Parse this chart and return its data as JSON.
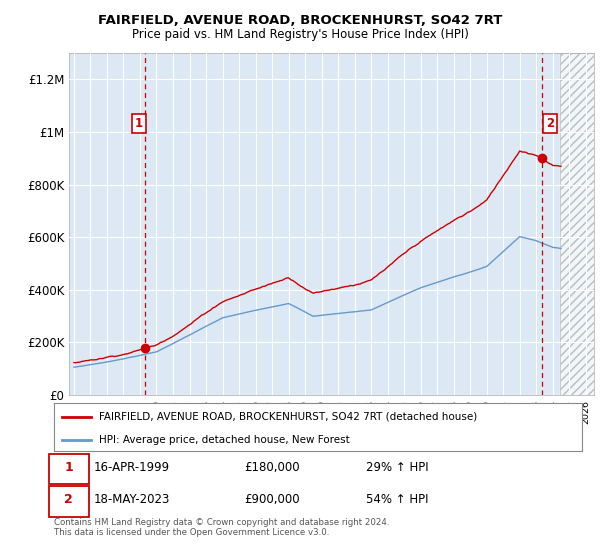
{
  "title": "FAIRFIELD, AVENUE ROAD, BROCKENHURST, SO42 7RT",
  "subtitle": "Price paid vs. HM Land Registry's House Price Index (HPI)",
  "sale1_label": "1",
  "sale1_date": 1999.29,
  "sale1_price": 180000,
  "sale1_text": "16-APR-1999",
  "sale1_amt": "£180,000",
  "sale1_hpi_pct": "29% ↑ HPI",
  "sale2_label": "2",
  "sale2_date": 2023.38,
  "sale2_price": 900000,
  "sale2_text": "18-MAY-2023",
  "sale2_amt": "£900,000",
  "sale2_hpi_pct": "54% ↑ HPI",
  "red_line_label": "FAIRFIELD, AVENUE ROAD, BROCKENHURST, SO42 7RT (detached house)",
  "blue_line_label": "HPI: Average price, detached house, New Forest",
  "footnote": "Contains HM Land Registry data © Crown copyright and database right 2024.\nThis data is licensed under the Open Government Licence v3.0.",
  "ylim": [
    0,
    1300000
  ],
  "xlim_start": 1994.7,
  "xlim_end": 2026.5,
  "future_start": 2024.42,
  "bg_color": "#dce9f5",
  "red_color": "#cc0000",
  "blue_color": "#6699cc",
  "grid_color": "#ffffff",
  "yticks": [
    0,
    200000,
    400000,
    600000,
    800000,
    1000000,
    1200000
  ],
  "ytick_labels": [
    "£0",
    "£200K",
    "£400K",
    "£600K",
    "£800K",
    "£1M",
    "£1.2M"
  ]
}
